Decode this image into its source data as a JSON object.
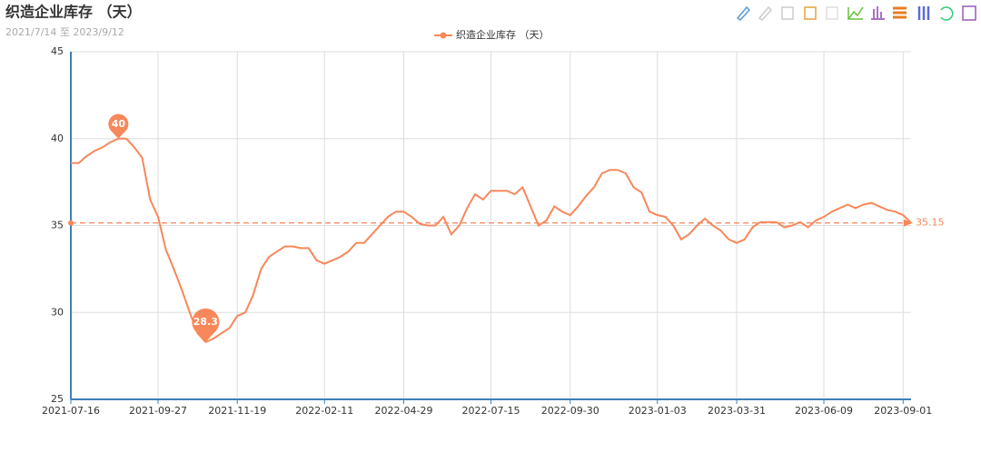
{
  "chart_data": {
    "type": "line",
    "title": "织造企业库存 （天）",
    "subtitle": "2021/7/14 至 2023/9/12",
    "categories": [
      "2021-07-16",
      null,
      null,
      null,
      null,
      null,
      null,
      null,
      null,
      null,
      null,
      "2021-09-27",
      null,
      null,
      null,
      null,
      null,
      null,
      null,
      null,
      null,
      "2021-11-19",
      null,
      null,
      null,
      null,
      null,
      null,
      null,
      null,
      null,
      null,
      "2022-02-11",
      null,
      null,
      null,
      null,
      null,
      null,
      null,
      null,
      null,
      "2022-04-29",
      null,
      null,
      null,
      null,
      null,
      null,
      null,
      null,
      null,
      null,
      "2022-07-15",
      null,
      null,
      null,
      null,
      null,
      null,
      null,
      null,
      null,
      "2022-09-30",
      null,
      null,
      null,
      null,
      null,
      null,
      null,
      null,
      null,
      null,
      "2023-01-03",
      null,
      null,
      null,
      null,
      null,
      null,
      null,
      null,
      null,
      "2023-03-31",
      null,
      null,
      null,
      null,
      null,
      null,
      null,
      null,
      null,
      null,
      "2023-06-09",
      null,
      null,
      null,
      null,
      null,
      null,
      null,
      null,
      null,
      "2023-09-01",
      null
    ],
    "series": [
      {
        "name": "织造企业库存 （天）",
        "color": "#f8875a",
        "values": [
          38.6,
          38.6,
          39.0,
          39.3,
          39.5,
          39.8,
          40.0,
          40.0,
          39.5,
          38.9,
          36.5,
          35.5,
          33.6,
          32.5,
          31.3,
          30.0,
          28.8,
          28.3,
          28.5,
          28.8,
          29.1,
          29.8,
          30.0,
          31.0,
          32.5,
          33.2,
          33.5,
          33.8,
          33.8,
          33.7,
          33.7,
          33.0,
          32.8,
          33.0,
          33.2,
          33.5,
          34.0,
          34.0,
          34.5,
          35.0,
          35.5,
          35.8,
          35.8,
          35.5,
          35.1,
          35.0,
          35.0,
          35.5,
          34.5,
          35.0,
          36.0,
          36.8,
          36.5,
          37.0,
          37.0,
          37.0,
          36.8,
          37.2,
          36.1,
          35.0,
          35.3,
          36.1,
          35.8,
          35.6,
          36.1,
          36.7,
          37.2,
          38.0,
          38.2,
          38.2,
          38.0,
          37.2,
          36.9,
          35.8,
          35.6,
          35.5,
          35.0,
          34.2,
          34.5,
          35.0,
          35.4,
          35.0,
          34.7,
          34.2,
          34.0,
          34.2,
          34.9,
          35.2,
          35.2,
          35.2,
          34.9,
          35.0,
          35.2,
          34.9,
          35.3,
          35.5,
          35.8,
          36.0,
          36.2,
          36.0,
          36.2,
          36.3,
          36.1,
          35.9,
          35.8,
          35.6,
          35.15
        ],
        "mark_points": [
          40,
          28.3
        ],
        "mark_line": 35.15
      }
    ],
    "ylim": [
      25,
      45
    ],
    "yticks": [
      25,
      30,
      35,
      40,
      45
    ],
    "grid": true,
    "legend": "top"
  }
}
